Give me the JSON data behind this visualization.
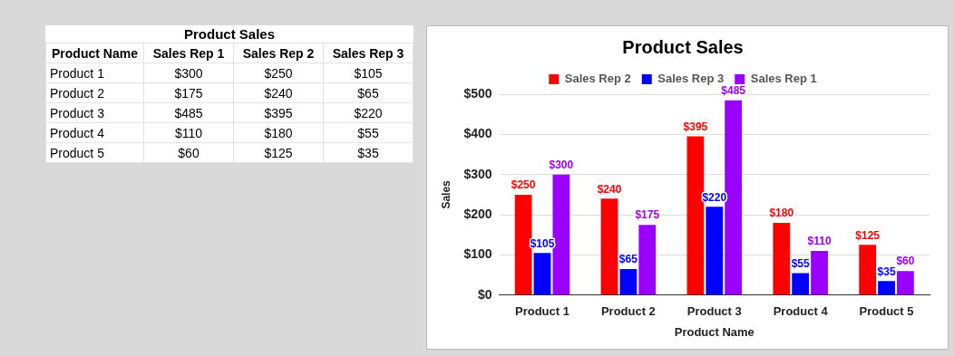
{
  "chart_data": {
    "type": "bar",
    "title": "Product Sales",
    "xlabel": "Product Name",
    "ylabel": "Sales",
    "categories": [
      "Product 1",
      "Product 2",
      "Product 3",
      "Product 4",
      "Product 5"
    ],
    "series": [
      {
        "name": "Sales Rep 2",
        "color": "#ff0000",
        "values": [
          250,
          240,
          395,
          180,
          125
        ],
        "value_labels": [
          "$250",
          "$240",
          "$395",
          "$180",
          "$125"
        ]
      },
      {
        "name": "Sales Rep 3",
        "color": "#0000ff",
        "values": [
          105,
          65,
          220,
          55,
          35
        ],
        "value_labels": [
          "$105",
          "$65",
          "$220",
          "$55",
          "$35"
        ]
      },
      {
        "name": "Sales Rep 1",
        "color": "#9900ff",
        "values": [
          300,
          175,
          485,
          110,
          60
        ],
        "value_labels": [
          "$300",
          "$175",
          "$485",
          "$110",
          "$60"
        ]
      }
    ],
    "ylim": [
      0,
      500
    ],
    "yticks": [
      {
        "value": 0,
        "label": "$0"
      },
      {
        "value": 100,
        "label": "$100"
      },
      {
        "value": 200,
        "label": "$200"
      },
      {
        "value": 300,
        "label": "$300"
      },
      {
        "value": 400,
        "label": "$400"
      },
      {
        "value": 500,
        "label": "$500"
      }
    ],
    "grid": "y",
    "legend": "top"
  }
}
